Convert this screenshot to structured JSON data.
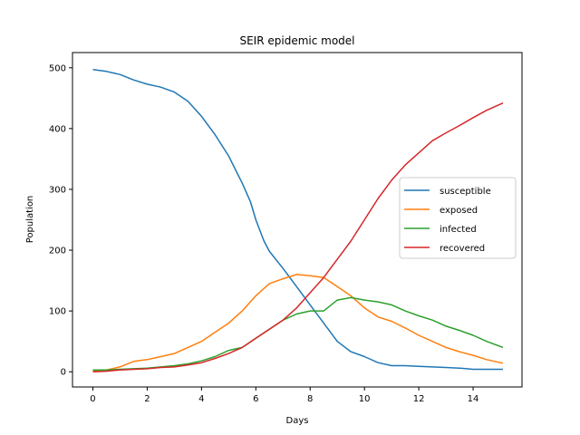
{
  "chart_data": {
    "type": "line",
    "title": "SEIR epidemic model",
    "xlabel": "Days",
    "ylabel": "Population",
    "xlim": [
      -0.75,
      15.8
    ],
    "ylim": [
      -25,
      525
    ],
    "xticks": [
      0,
      2,
      4,
      6,
      8,
      10,
      12,
      14
    ],
    "yticks": [
      0,
      100,
      200,
      300,
      400,
      500
    ],
    "grid": false,
    "legend_position": "center-right",
    "series": [
      {
        "name": "susceptible",
        "color": "#1f77b4",
        "points": [
          [
            0,
            497
          ],
          [
            0.5,
            494
          ],
          [
            1,
            489
          ],
          [
            1.5,
            480
          ],
          [
            2,
            473
          ],
          [
            2.5,
            468
          ],
          [
            3,
            460
          ],
          [
            3.5,
            445
          ],
          [
            4,
            420
          ],
          [
            4.5,
            390
          ],
          [
            5,
            355
          ],
          [
            5.5,
            310
          ],
          [
            5.8,
            280
          ],
          [
            6,
            250
          ],
          [
            6.3,
            215
          ],
          [
            6.5,
            198
          ],
          [
            7,
            170
          ],
          [
            7.5,
            140
          ],
          [
            8,
            110
          ],
          [
            8.5,
            80
          ],
          [
            9,
            50
          ],
          [
            9.5,
            33
          ],
          [
            10,
            25
          ],
          [
            10.5,
            15
          ],
          [
            11,
            10
          ],
          [
            11.5,
            10
          ],
          [
            12,
            9
          ],
          [
            12.5,
            8
          ],
          [
            13,
            7
          ],
          [
            13.5,
            6
          ],
          [
            14,
            4
          ],
          [
            14.5,
            4
          ],
          [
            15.1,
            4
          ]
        ]
      },
      {
        "name": "exposed",
        "color": "#ff7f0e",
        "points": [
          [
            0,
            1
          ],
          [
            0.5,
            3
          ],
          [
            1,
            8
          ],
          [
            1.5,
            17
          ],
          [
            2,
            20
          ],
          [
            2.5,
            25
          ],
          [
            3,
            30
          ],
          [
            3.5,
            40
          ],
          [
            4,
            50
          ],
          [
            4.5,
            65
          ],
          [
            5,
            80
          ],
          [
            5.5,
            100
          ],
          [
            6,
            125
          ],
          [
            6.5,
            145
          ],
          [
            7,
            153
          ],
          [
            7.5,
            160
          ],
          [
            8,
            158
          ],
          [
            8.5,
            155
          ],
          [
            9,
            140
          ],
          [
            9.5,
            125
          ],
          [
            10,
            105
          ],
          [
            10.5,
            90
          ],
          [
            11,
            83
          ],
          [
            11.5,
            72
          ],
          [
            12,
            60
          ],
          [
            12.5,
            50
          ],
          [
            13,
            40
          ],
          [
            13.5,
            33
          ],
          [
            14,
            27
          ],
          [
            14.5,
            20
          ],
          [
            15.1,
            14
          ]
        ]
      },
      {
        "name": "infected",
        "color": "#2ca02c",
        "points": [
          [
            0,
            3
          ],
          [
            0.5,
            3
          ],
          [
            1,
            4
          ],
          [
            1.5,
            5
          ],
          [
            2,
            6
          ],
          [
            2.5,
            8
          ],
          [
            3,
            10
          ],
          [
            3.5,
            13
          ],
          [
            4,
            18
          ],
          [
            4.5,
            25
          ],
          [
            5,
            35
          ],
          [
            5.5,
            40
          ],
          [
            6,
            55
          ],
          [
            6.5,
            70
          ],
          [
            7,
            85
          ],
          [
            7.5,
            95
          ],
          [
            8,
            100
          ],
          [
            8.5,
            100
          ],
          [
            9,
            118
          ],
          [
            9.5,
            122
          ],
          [
            10,
            118
          ],
          [
            10.5,
            115
          ],
          [
            11,
            110
          ],
          [
            11.5,
            100
          ],
          [
            12,
            92
          ],
          [
            12.5,
            85
          ],
          [
            13,
            75
          ],
          [
            13.5,
            68
          ],
          [
            14,
            60
          ],
          [
            14.5,
            50
          ],
          [
            15.1,
            40
          ]
        ]
      },
      {
        "name": "recovered",
        "color": "#d62728",
        "points": [
          [
            0,
            0
          ],
          [
            0.5,
            1
          ],
          [
            1,
            3
          ],
          [
            1.5,
            4
          ],
          [
            2,
            5
          ],
          [
            2.5,
            7
          ],
          [
            3,
            8
          ],
          [
            3.5,
            11
          ],
          [
            4,
            15
          ],
          [
            4.5,
            22
          ],
          [
            5,
            30
          ],
          [
            5.5,
            40
          ],
          [
            6,
            55
          ],
          [
            6.5,
            70
          ],
          [
            7,
            85
          ],
          [
            7.5,
            105
          ],
          [
            8,
            130
          ],
          [
            8.5,
            155
          ],
          [
            9,
            185
          ],
          [
            9.5,
            215
          ],
          [
            10,
            250
          ],
          [
            10.5,
            285
          ],
          [
            11,
            315
          ],
          [
            11.5,
            340
          ],
          [
            12,
            360
          ],
          [
            12.5,
            380
          ],
          [
            13,
            393
          ],
          [
            13.5,
            405
          ],
          [
            14,
            418
          ],
          [
            14.5,
            430
          ],
          [
            15.1,
            442
          ]
        ]
      }
    ]
  }
}
